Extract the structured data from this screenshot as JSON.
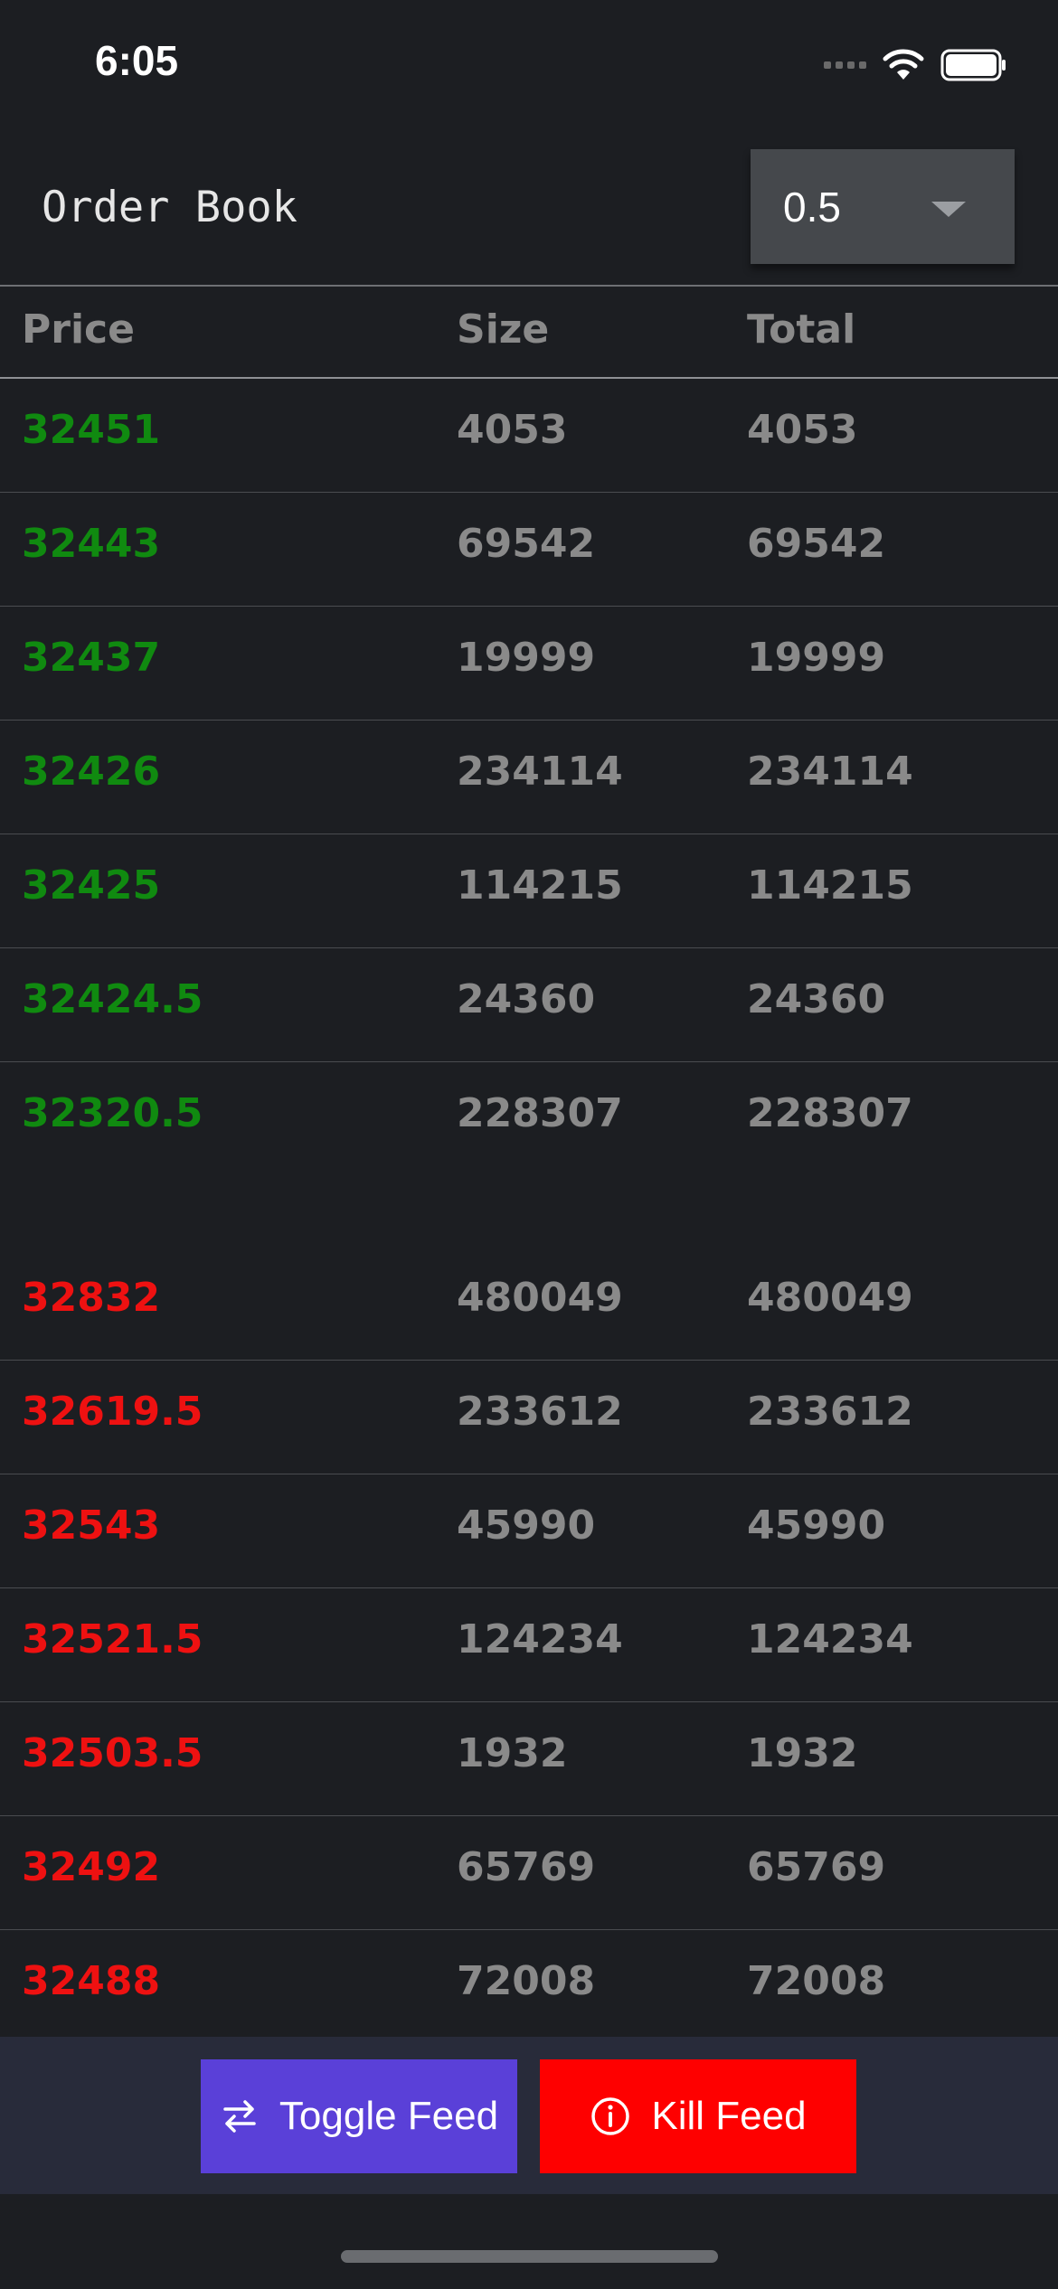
{
  "status_bar": {
    "time": "6:05"
  },
  "header": {
    "title": "Order Book",
    "group_value": "0.5"
  },
  "columns": {
    "price": "Price",
    "size": "Size",
    "total": "Total"
  },
  "bids": [
    {
      "price": "32451",
      "size": "4053",
      "total": "4053"
    },
    {
      "price": "32443",
      "size": "69542",
      "total": "69542"
    },
    {
      "price": "32437",
      "size": "19999",
      "total": "19999"
    },
    {
      "price": "32426",
      "size": "234114",
      "total": "234114"
    },
    {
      "price": "32425",
      "size": "114215",
      "total": "114215"
    },
    {
      "price": "32424.5",
      "size": "24360",
      "total": "24360"
    },
    {
      "price": "32320.5",
      "size": "228307",
      "total": "228307"
    }
  ],
  "asks": [
    {
      "price": "32832",
      "size": "480049",
      "total": "480049"
    },
    {
      "price": "32619.5",
      "size": "233612",
      "total": "233612"
    },
    {
      "price": "32543",
      "size": "45990",
      "total": "45990"
    },
    {
      "price": "32521.5",
      "size": "124234",
      "total": "124234"
    },
    {
      "price": "32503.5",
      "size": "1932",
      "total": "1932"
    },
    {
      "price": "32492",
      "size": "65769",
      "total": "65769"
    },
    {
      "price": "32488",
      "size": "72008",
      "total": "72008"
    }
  ],
  "footer": {
    "toggle_label": "Toggle Feed",
    "kill_label": "Kill Feed"
  },
  "colors": {
    "bid": "#108a10",
    "ask": "#ee1111",
    "toggle": "#5a40d8",
    "kill": "#fe0000"
  }
}
